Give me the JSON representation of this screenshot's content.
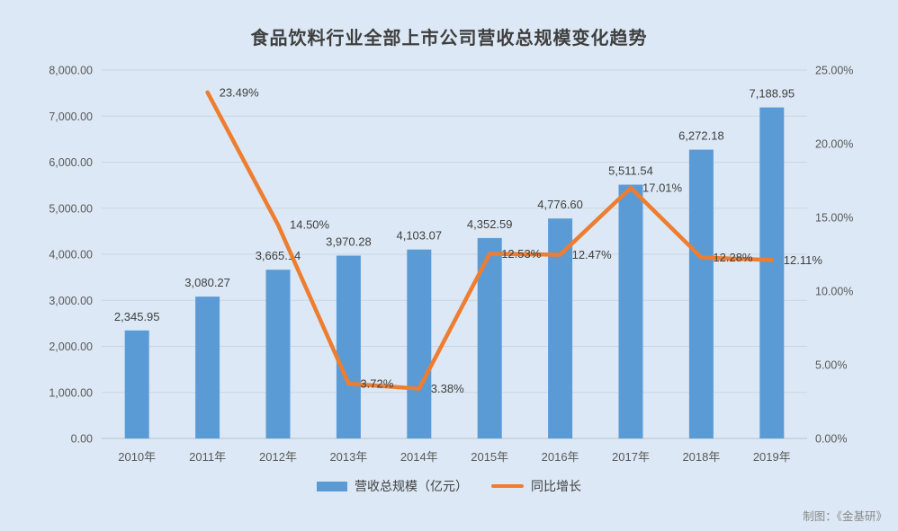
{
  "title": "食品饮料行业全部上市公司营收总规模变化趋势",
  "credit": "制图：《金基研》",
  "colors": {
    "background": "#dce8f5",
    "bar": "#5B9BD5",
    "line": "#ED7D31",
    "gridline": "#ccd5de",
    "baseline": "#b7c2cd",
    "tick_text": "#595959",
    "data_label": "#3f3f3f"
  },
  "legend": {
    "bar_label": "营收总规模（亿元）",
    "line_label": "同比增长"
  },
  "chart_data": {
    "type": "combo-bar-line",
    "title": "食品饮料行业全部上市公司营收总规模变化趋势",
    "categories": [
      "2010年",
      "2011年",
      "2012年",
      "2013年",
      "2014年",
      "2015年",
      "2016年",
      "2017年",
      "2018年",
      "2019年"
    ],
    "series": [
      {
        "name": "营收总规模（亿元）",
        "type": "bar",
        "axis": "left",
        "color": "#5B9BD5",
        "values": [
          2345.95,
          3080.27,
          3665.14,
          3970.28,
          4103.07,
          4352.59,
          4776.6,
          5511.54,
          6272.18,
          7188.95
        ],
        "labels": [
          "2,345.95",
          "3,080.27",
          "3,665.14",
          "3,970.28",
          "4,103.07",
          "4,352.59",
          "4,776.60",
          "5,511.54",
          "6,272.18",
          "7,188.95"
        ]
      },
      {
        "name": "同比增长",
        "type": "line",
        "axis": "right",
        "color": "#ED7D31",
        "values": [
          null,
          23.49,
          14.5,
          3.72,
          3.38,
          12.53,
          12.47,
          17.01,
          12.28,
          12.11
        ],
        "labels": [
          null,
          "23.49%",
          "14.50%",
          "3.72%",
          "3.38%",
          "12.53%",
          "12.47%",
          "17.01%",
          "12.28%",
          "12.11%"
        ]
      }
    ],
    "left_axis": {
      "min": 0,
      "max": 8000,
      "step": 1000,
      "tick_labels": [
        "0.00",
        "1,000.00",
        "2,000.00",
        "3,000.00",
        "4,000.00",
        "5,000.00",
        "6,000.00",
        "7,000.00",
        "8,000.00"
      ]
    },
    "right_axis": {
      "min": 0,
      "max": 25,
      "step": 5,
      "tick_labels": [
        "0.00%",
        "5.00%",
        "10.00%",
        "15.00%",
        "20.00%",
        "25.00%"
      ]
    },
    "grid": "horizontal",
    "legend_position": "bottom"
  }
}
